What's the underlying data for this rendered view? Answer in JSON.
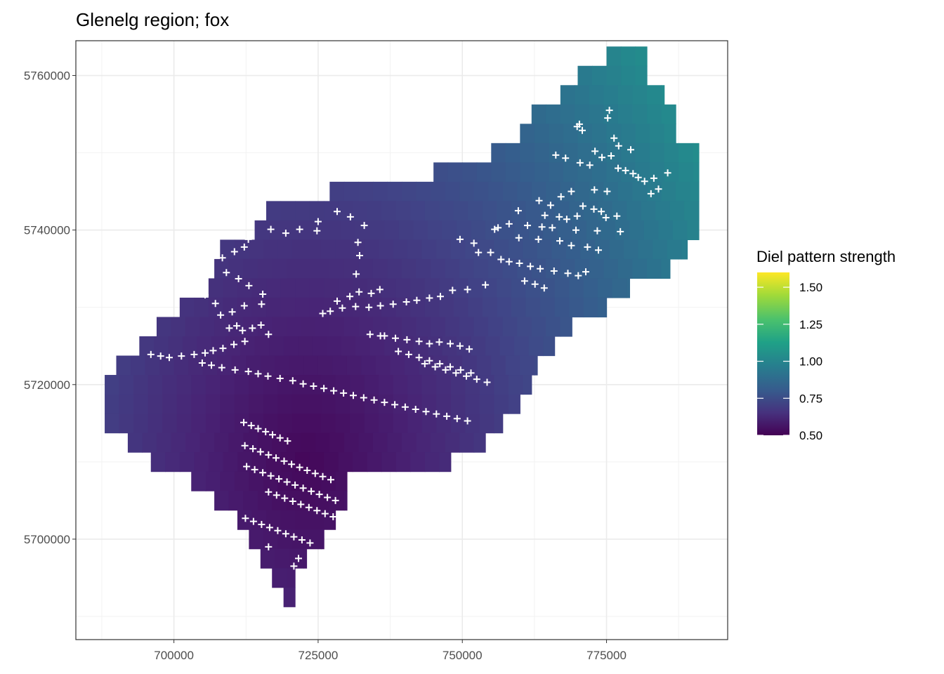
{
  "chart_data": {
    "type": "heatmap",
    "title": "Glenelg region; fox",
    "xlabel": "",
    "ylabel": "",
    "xlim": [
      683000,
      796000
    ],
    "ylim": [
      5687000,
      5764500
    ],
    "grid": true,
    "x_ticks": [
      700000,
      725000,
      750000,
      775000
    ],
    "x_tick_labels": [
      "700000",
      "725000",
      "750000",
      "775000"
    ],
    "y_ticks": [
      5700000,
      5720000,
      5740000,
      5760000
    ],
    "y_tick_labels": [
      "5700000",
      "5720000",
      "5740000",
      "5760000"
    ],
    "legend": {
      "title": "Diel pattern strength",
      "position": "right",
      "range": [
        0.5,
        1.6
      ],
      "breaks": [
        0.5,
        0.75,
        1.0,
        1.25,
        1.5
      ],
      "break_labels": [
        "0.50",
        "0.75",
        "1.00",
        "1.25",
        "1.50"
      ]
    },
    "colormap": "viridis",
    "point_marker": "+",
    "point_color": "#ffffff",
    "surface_model": {
      "type": "quadratic",
      "center": [
        723000,
        5710000
      ],
      "min_value": 0.52,
      "gradient_per_km": 0.0041,
      "curvature_per_km2": 3e-05
    },
    "region_rows": [
      {
        "y": 5762500,
        "x0": 775000,
        "x1": 782000
      },
      {
        "y": 5760000,
        "x0": 770000,
        "x1": 782000
      },
      {
        "y": 5757500,
        "x0": 767000,
        "x1": 785000
      },
      {
        "y": 5755000,
        "x0": 762000,
        "x1": 787000
      },
      {
        "y": 5752500,
        "x0": 760000,
        "x1": 787000
      },
      {
        "y": 5750000,
        "x0": 755000,
        "x1": 791000
      },
      {
        "y": 5747500,
        "x0": 745000,
        "x1": 791000
      },
      {
        "y": 5745000,
        "x0": 727000,
        "x1": 791000
      },
      {
        "y": 5742500,
        "x0": 716000,
        "x1": 791000
      },
      {
        "y": 5740000,
        "x0": 714000,
        "x1": 791000
      },
      {
        "y": 5737500,
        "x0": 708000,
        "x1": 789000
      },
      {
        "y": 5735000,
        "x0": 707000,
        "x1": 786000
      },
      {
        "y": 5732500,
        "x0": 706000,
        "x1": 779000
      },
      {
        "y": 5730000,
        "x0": 701000,
        "x1": 775000
      },
      {
        "y": 5727500,
        "x0": 697000,
        "x1": 769000
      },
      {
        "y": 5725000,
        "x0": 694000,
        "x1": 766000
      },
      {
        "y": 5722500,
        "x0": 690000,
        "x1": 763000
      },
      {
        "y": 5720000,
        "x0": 688000,
        "x1": 762000
      },
      {
        "y": 5717500,
        "x0": 688000,
        "x1": 760000
      },
      {
        "y": 5715000,
        "x0": 688000,
        "x1": 757000
      },
      {
        "y": 5712500,
        "x0": 692000,
        "x1": 754000
      },
      {
        "y": 5710000,
        "x0": 696000,
        "x1": 748000
      },
      {
        "y": 5707500,
        "x0": 703000,
        "x1": 730000
      },
      {
        "y": 5705000,
        "x0": 707000,
        "x1": 730000
      },
      {
        "y": 5702500,
        "x0": 711000,
        "x1": 728000
      },
      {
        "y": 5700000,
        "x0": 713000,
        "x1": 726000
      },
      {
        "y": 5697500,
        "x0": 715000,
        "x1": 723000
      },
      {
        "y": 5695000,
        "x0": 717000,
        "x1": 721000
      },
      {
        "y": 5692500,
        "x0": 719000,
        "x1": 721000
      }
    ],
    "points": [
      [
        775500,
        5755500
      ],
      [
        775200,
        5754500
      ],
      [
        770300,
        5753700
      ],
      [
        769900,
        5753400
      ],
      [
        770800,
        5752900
      ],
      [
        776300,
        5751900
      ],
      [
        777100,
        5750900
      ],
      [
        779200,
        5750400
      ],
      [
        773000,
        5750200
      ],
      [
        775800,
        5749600
      ],
      [
        774200,
        5749400
      ],
      [
        766200,
        5749700
      ],
      [
        767900,
        5749300
      ],
      [
        770400,
        5748700
      ],
      [
        772100,
        5748400
      ],
      [
        777000,
        5748000
      ],
      [
        778300,
        5747700
      ],
      [
        779600,
        5747300
      ],
      [
        780500,
        5746800
      ],
      [
        781600,
        5746300
      ],
      [
        783200,
        5746700
      ],
      [
        785600,
        5747400
      ],
      [
        784000,
        5745300
      ],
      [
        782700,
        5744700
      ],
      [
        768900,
        5745000
      ],
      [
        772900,
        5745200
      ],
      [
        775100,
        5745000
      ],
      [
        767100,
        5744300
      ],
      [
        763300,
        5743800
      ],
      [
        765300,
        5743200
      ],
      [
        770900,
        5743100
      ],
      [
        772800,
        5742700
      ],
      [
        774100,
        5742400
      ],
      [
        759700,
        5742500
      ],
      [
        764300,
        5741900
      ],
      [
        766800,
        5741700
      ],
      [
        768100,
        5741400
      ],
      [
        769900,
        5741800
      ],
      [
        774900,
        5741600
      ],
      [
        776800,
        5741800
      ],
      [
        758100,
        5740800
      ],
      [
        761300,
        5740600
      ],
      [
        763800,
        5740400
      ],
      [
        765600,
        5740300
      ],
      [
        769700,
        5740000
      ],
      [
        773400,
        5739900
      ],
      [
        777400,
        5739800
      ],
      [
        755600,
        5740100
      ],
      [
        756200,
        5740300
      ],
      [
        759800,
        5739000
      ],
      [
        763200,
        5738800
      ],
      [
        766900,
        5738600
      ],
      [
        768900,
        5738000
      ],
      [
        771700,
        5737800
      ],
      [
        773600,
        5737400
      ],
      [
        749600,
        5738800
      ],
      [
        752000,
        5738300
      ],
      [
        752800,
        5737100
      ],
      [
        754900,
        5737100
      ],
      [
        756700,
        5736200
      ],
      [
        758100,
        5735900
      ],
      [
        759900,
        5735700
      ],
      [
        761800,
        5735300
      ],
      [
        763500,
        5735000
      ],
      [
        765900,
        5734700
      ],
      [
        768300,
        5734400
      ],
      [
        770100,
        5734100
      ],
      [
        771400,
        5734600
      ],
      [
        760800,
        5733400
      ],
      [
        762600,
        5733000
      ],
      [
        764200,
        5732500
      ],
      [
        754000,
        5732900
      ],
      [
        750900,
        5732300
      ],
      [
        748300,
        5732200
      ],
      [
        746200,
        5731400
      ],
      [
        744300,
        5731200
      ],
      [
        742100,
        5730900
      ],
      [
        740300,
        5730700
      ],
      [
        738000,
        5730400
      ],
      [
        735800,
        5730200
      ],
      [
        733800,
        5730000
      ],
      [
        731500,
        5730100
      ],
      [
        729200,
        5729900
      ],
      [
        727100,
        5729500
      ],
      [
        725800,
        5729200
      ],
      [
        728300,
        5730800
      ],
      [
        730500,
        5731400
      ],
      [
        732100,
        5732000
      ],
      [
        734200,
        5731800
      ],
      [
        735700,
        5732300
      ],
      [
        731600,
        5734300
      ],
      [
        732200,
        5736700
      ],
      [
        731900,
        5738400
      ],
      [
        733000,
        5740600
      ],
      [
        730600,
        5741700
      ],
      [
        728300,
        5742400
      ],
      [
        725000,
        5741100
      ],
      [
        724800,
        5739900
      ],
      [
        721800,
        5740100
      ],
      [
        719400,
        5739600
      ],
      [
        716800,
        5740100
      ],
      [
        712900,
        5738800
      ],
      [
        712200,
        5737800
      ],
      [
        710500,
        5737200
      ],
      [
        708400,
        5736400
      ],
      [
        709100,
        5734500
      ],
      [
        711200,
        5733700
      ],
      [
        713000,
        5732800
      ],
      [
        715400,
        5731700
      ],
      [
        715200,
        5730400
      ],
      [
        712200,
        5730200
      ],
      [
        710100,
        5729400
      ],
      [
        708100,
        5729000
      ],
      [
        707200,
        5730500
      ],
      [
        705400,
        5731600
      ],
      [
        710900,
        5727600
      ],
      [
        709600,
        5727300
      ],
      [
        711900,
        5727000
      ],
      [
        713600,
        5727300
      ],
      [
        715100,
        5727700
      ],
      [
        716400,
        5726500
      ],
      [
        712300,
        5725600
      ],
      [
        710400,
        5725200
      ],
      [
        708500,
        5724700
      ],
      [
        706800,
        5724400
      ],
      [
        705400,
        5724100
      ],
      [
        703500,
        5723900
      ],
      [
        701300,
        5723700
      ],
      [
        699200,
        5723500
      ],
      [
        697700,
        5723700
      ],
      [
        696000,
        5723900
      ],
      [
        704900,
        5722800
      ],
      [
        706500,
        5722500
      ],
      [
        708300,
        5722200
      ],
      [
        710600,
        5721900
      ],
      [
        712900,
        5721700
      ],
      [
        714600,
        5721400
      ],
      [
        716300,
        5721100
      ],
      [
        718400,
        5720800
      ],
      [
        720600,
        5720500
      ],
      [
        722400,
        5720100
      ],
      [
        724200,
        5719800
      ],
      [
        726000,
        5719500
      ],
      [
        727700,
        5719200
      ],
      [
        729400,
        5718900
      ],
      [
        731100,
        5718600
      ],
      [
        732900,
        5718300
      ],
      [
        734700,
        5718000
      ],
      [
        736500,
        5717700
      ],
      [
        738300,
        5717400
      ],
      [
        740100,
        5717100
      ],
      [
        741900,
        5716800
      ],
      [
        743700,
        5716500
      ],
      [
        745500,
        5716200
      ],
      [
        747300,
        5715900
      ],
      [
        749100,
        5715600
      ],
      [
        750900,
        5715300
      ],
      [
        712100,
        5715100
      ],
      [
        713400,
        5714700
      ],
      [
        714600,
        5714300
      ],
      [
        715900,
        5713900
      ],
      [
        717100,
        5713500
      ],
      [
        718400,
        5713100
      ],
      [
        719700,
        5712700
      ],
      [
        712300,
        5712100
      ],
      [
        713700,
        5711700
      ],
      [
        715000,
        5711300
      ],
      [
        716400,
        5710900
      ],
      [
        717700,
        5710500
      ],
      [
        719100,
        5710100
      ],
      [
        720400,
        5709700
      ],
      [
        721800,
        5709300
      ],
      [
        723100,
        5708900
      ],
      [
        724500,
        5708500
      ],
      [
        725800,
        5708100
      ],
      [
        727200,
        5707700
      ],
      [
        712600,
        5709400
      ],
      [
        714000,
        5709000
      ],
      [
        715400,
        5708600
      ],
      [
        716800,
        5708200
      ],
      [
        718200,
        5707800
      ],
      [
        719600,
        5707400
      ],
      [
        721000,
        5707000
      ],
      [
        722400,
        5706600
      ],
      [
        723800,
        5706200
      ],
      [
        725200,
        5705800
      ],
      [
        726600,
        5705400
      ],
      [
        728000,
        5705000
      ],
      [
        716400,
        5706100
      ],
      [
        717800,
        5705700
      ],
      [
        719200,
        5705300
      ],
      [
        720600,
        5704900
      ],
      [
        722000,
        5704500
      ],
      [
        723400,
        5704100
      ],
      [
        724800,
        5703700
      ],
      [
        726200,
        5703300
      ],
      [
        727600,
        5702900
      ],
      [
        712400,
        5702700
      ],
      [
        713800,
        5702300
      ],
      [
        715200,
        5701900
      ],
      [
        716600,
        5701500
      ],
      [
        718000,
        5701100
      ],
      [
        719400,
        5700700
      ],
      [
        720800,
        5700300
      ],
      [
        722200,
        5699900
      ],
      [
        723600,
        5699500
      ],
      [
        721600,
        5697500
      ],
      [
        720800,
        5696500
      ],
      [
        716400,
        5699000
      ],
      [
        743500,
        5722700
      ],
      [
        745300,
        5722300
      ],
      [
        747100,
        5721900
      ],
      [
        748900,
        5721500
      ],
      [
        750700,
        5721100
      ],
      [
        752500,
        5720700
      ],
      [
        754300,
        5720300
      ],
      [
        738900,
        5724300
      ],
      [
        740700,
        5723900
      ],
      [
        742500,
        5723500
      ],
      [
        744300,
        5723100
      ],
      [
        746100,
        5722700
      ],
      [
        747900,
        5722300
      ],
      [
        749700,
        5721900
      ],
      [
        751500,
        5721500
      ],
      [
        744300,
        5725300
      ],
      [
        746000,
        5725500
      ],
      [
        747900,
        5725300
      ],
      [
        749600,
        5725000
      ],
      [
        751200,
        5724600
      ],
      [
        736500,
        5726300
      ],
      [
        738400,
        5726000
      ],
      [
        740400,
        5725800
      ],
      [
        742500,
        5725600
      ],
      [
        734000,
        5726500
      ],
      [
        735800,
        5726300
      ]
    ]
  }
}
